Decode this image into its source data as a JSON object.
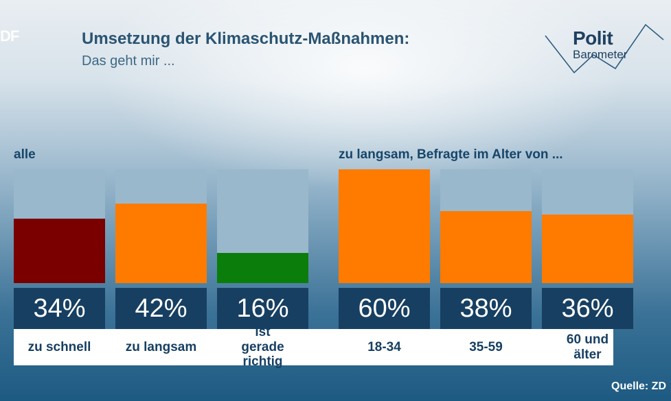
{
  "brand_corner": "DF",
  "title": "Umsetzung der Klimaschutz-Maßnahmen:",
  "subtitle": "Das geht mir ...",
  "logo": {
    "line1": "Polit",
    "line2": "Barometer"
  },
  "source": "Quelle: ZD",
  "chart_data": [
    {
      "type": "bar",
      "title": "alle",
      "categories": [
        "zu schnell",
        "zu langsam",
        "ist gerade richtig"
      ],
      "values": [
        34,
        42,
        16
      ],
      "labels": [
        "34%",
        "42%",
        "16%"
      ],
      "colors": [
        "#7a0000",
        "#ff7b00",
        "#0a7d0a"
      ],
      "ylim": [
        0,
        60
      ]
    },
    {
      "type": "bar",
      "title": "zu langsam, Befragte im Alter von ...",
      "categories": [
        "18-34",
        "35-59",
        "60 und älter"
      ],
      "values": [
        60,
        38,
        36
      ],
      "labels": [
        "60%",
        "38%",
        "36%"
      ],
      "colors": [
        "#ff7b00",
        "#ff7b00",
        "#ff7b00"
      ],
      "ylim": [
        0,
        60
      ]
    }
  ]
}
